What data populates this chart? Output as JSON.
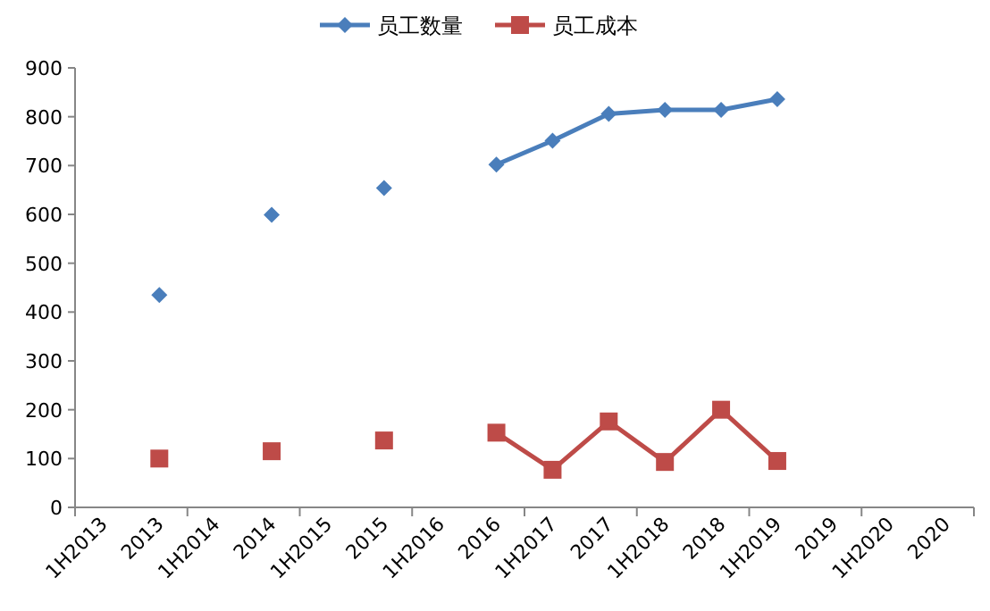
{
  "chart_data": {
    "type": "line",
    "categories": [
      "1H2013",
      "2013",
      "1H2014",
      "2014",
      "1H2015",
      "2015",
      "1H2016",
      "2016",
      "1H2017",
      "2017",
      "1H2018",
      "2018",
      "1H2019",
      "2019",
      "1H2020",
      "2020"
    ],
    "series": [
      {
        "name": "员工数量",
        "color": "#4a7ebb",
        "marker": "diamond",
        "values": [
          null,
          435,
          null,
          599,
          null,
          654,
          null,
          702,
          751,
          806,
          814,
          814,
          836,
          null,
          null,
          null
        ]
      },
      {
        "name": "员工成本",
        "color": "#be4b48",
        "marker": "square",
        "values": [
          null,
          100,
          null,
          115,
          null,
          137,
          null,
          153,
          77,
          176,
          93,
          200,
          95,
          null,
          null,
          null
        ]
      }
    ],
    "ylim": [
      0,
      900
    ],
    "yticks": [
      0,
      100,
      200,
      300,
      400,
      500,
      600,
      700,
      800,
      900
    ],
    "legend": "top"
  }
}
